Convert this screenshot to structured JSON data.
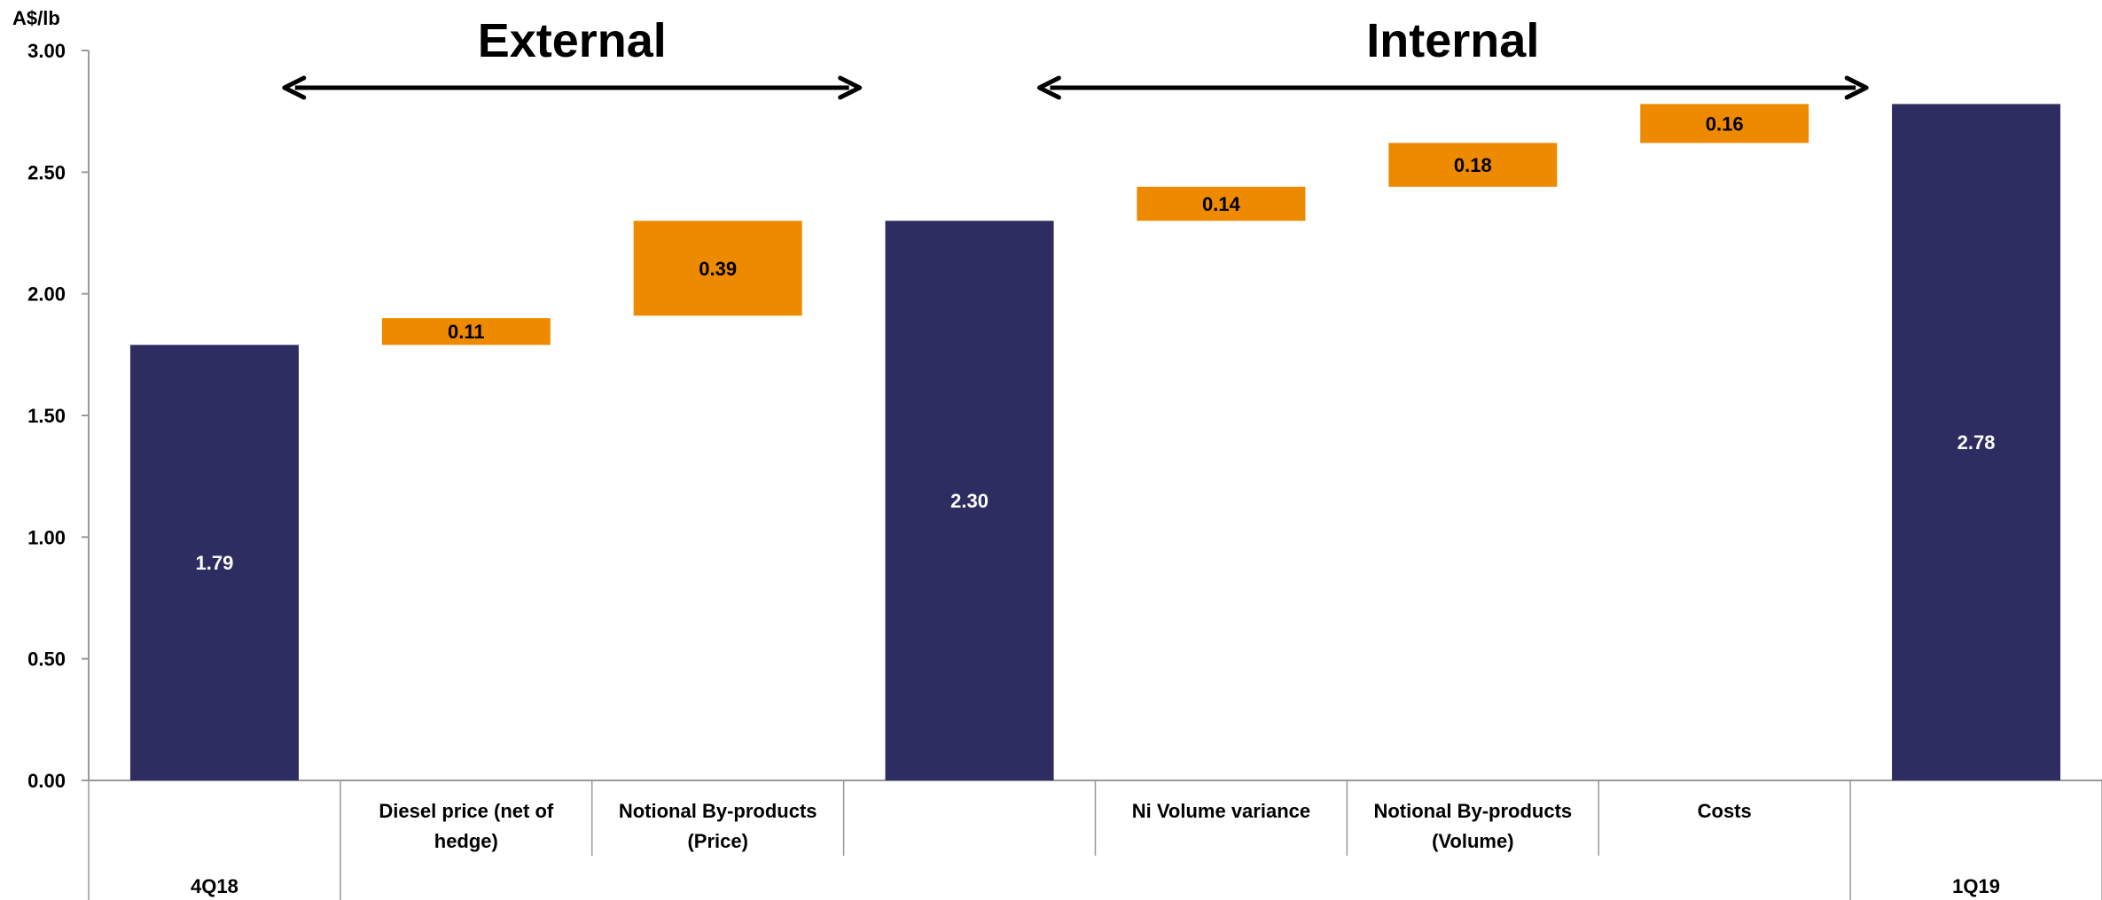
{
  "chart_data": {
    "type": "bar",
    "subtype": "waterfall",
    "ylabel": "A$/lb",
    "ylim": [
      0,
      3.0
    ],
    "yticks": [
      "0.00",
      "0.50",
      "1.00",
      "1.50",
      "2.00",
      "2.50",
      "3.00"
    ],
    "ytick_values": [
      0,
      0.5,
      1.0,
      1.5,
      2.0,
      2.5,
      3.0
    ],
    "grid": false,
    "colors": {
      "total": "#2E2D62",
      "change": "#EE8A00",
      "axis": "#999999",
      "text": "#000000"
    },
    "bars": [
      {
        "category": "4Q18",
        "kind": "total",
        "base": 0,
        "value": 1.79,
        "label": "1.79"
      },
      {
        "category": "Diesel price  (net of hedge)",
        "kind": "change",
        "base": 1.79,
        "value": 0.11,
        "label": "0.11"
      },
      {
        "category": "Notional By-products (Price)",
        "kind": "change",
        "base": 1.91,
        "value": 0.39,
        "label": "0.39"
      },
      {
        "category": "",
        "kind": "total",
        "base": 0,
        "value": 2.3,
        "label": "2.30"
      },
      {
        "category": "Ni Volume variance",
        "kind": "change",
        "base": 2.3,
        "value": 0.14,
        "label": "0.14"
      },
      {
        "category": "Notional By-products (Volume)",
        "kind": "change",
        "base": 2.44,
        "value": 0.18,
        "label": "0.18"
      },
      {
        "category": "Costs",
        "kind": "change",
        "base": 2.62,
        "value": 0.16,
        "label": "0.16"
      },
      {
        "category": "1Q19",
        "kind": "total",
        "base": 0,
        "value": 2.78,
        "label": "2.78"
      }
    ],
    "annotations": [
      {
        "text": "External",
        "from_bar": 1,
        "to_bar": 2
      },
      {
        "text": "Internal",
        "from_bar": 4,
        "to_bar": 6
      }
    ]
  }
}
